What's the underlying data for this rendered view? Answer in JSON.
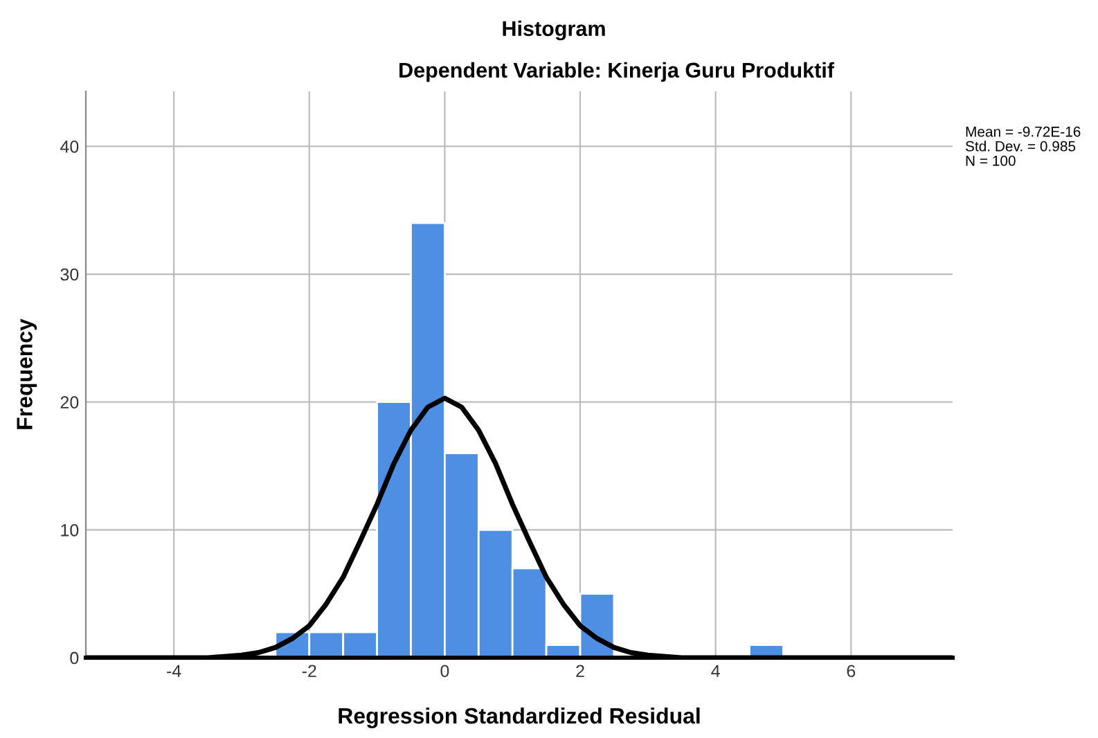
{
  "chart_data": {
    "type": "histogram",
    "title": "Histogram",
    "subtitle": "Dependent Variable: Kinerja Guru Produktif",
    "xlabel": "Regression Standardized Residual",
    "ylabel": "Frequency",
    "bins": [
      -2.5,
      -2.0,
      -1.5,
      -1.0,
      -0.5,
      0.0,
      0.5,
      1.0,
      1.5,
      2.0,
      2.5,
      3.0,
      3.5,
      4.0,
      4.5,
      5.0
    ],
    "values": [
      2,
      2,
      2,
      20,
      34,
      16,
      10,
      7,
      1,
      5,
      0,
      0,
      0,
      0,
      1
    ],
    "color": "#4f8fe3",
    "series": [
      {
        "type": "line",
        "color": "#000000",
        "x": [
          -5.3,
          -4,
          -3.5,
          -3,
          -2.75,
          -2.5,
          -2.25,
          -2,
          -1.75,
          -1.5,
          -1.25,
          -1,
          -0.75,
          -0.5,
          -0.25,
          0,
          0.25,
          0.5,
          0.75,
          1,
          1.25,
          1.5,
          1.75,
          2,
          2.25,
          2.5,
          2.75,
          3,
          3.5,
          4,
          7.5
        ],
        "values": [
          0,
          0,
          0.0,
          0.2,
          0.4,
          0.8,
          1.5,
          2.5,
          4.2,
          6.3,
          9.1,
          12.0,
          15.2,
          17.8,
          19.6,
          20.3,
          19.6,
          17.8,
          15.2,
          12.0,
          9.1,
          6.3,
          4.2,
          2.5,
          1.5,
          0.8,
          0.4,
          0.2,
          0.0,
          0,
          0
        ]
      }
    ],
    "annotations": [
      "Mean = -9.72E-16",
      "Std. Dev. = 0.985",
      "N = 100"
    ],
    "xlim": [
      -5.3,
      7.5
    ],
    "ylim": [
      0,
      44.3
    ],
    "xticks": [
      -4,
      -2,
      0,
      2,
      4,
      6
    ],
    "yticks": [
      0,
      10,
      20,
      30,
      40
    ],
    "grid": true
  }
}
